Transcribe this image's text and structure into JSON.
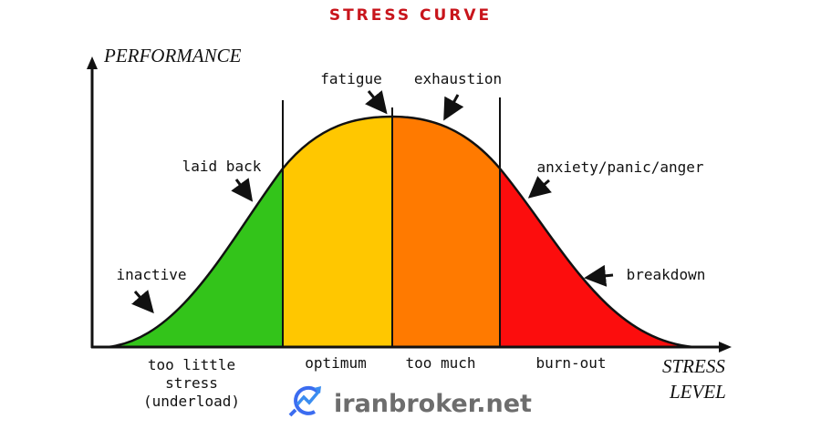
{
  "title": "STRESS CURVE",
  "y_axis_label": "PERFORMANCE",
  "x_axis_label_line1": "STRESS",
  "x_axis_label_line2": "LEVEL",
  "zones": [
    {
      "label_lines": [
        "too little",
        "stress",
        "(underload)"
      ],
      "color": "#33c41a"
    },
    {
      "label_lines": [
        "optimum"
      ],
      "color": "#ffc700"
    },
    {
      "label_lines": [
        "too much"
      ],
      "color": "#ff7a00"
    },
    {
      "label_lines": [
        "burn-out"
      ],
      "color": "#fc0d0d"
    }
  ],
  "annotations": [
    "inactive",
    "laid back",
    "fatigue",
    "exhaustion",
    "anxiety/panic/anger",
    "breakdown"
  ],
  "watermark": {
    "text": "iranbroker.net",
    "icon": "trend-arrow-logo-icon",
    "icon_color": "#3b6cf0"
  }
}
